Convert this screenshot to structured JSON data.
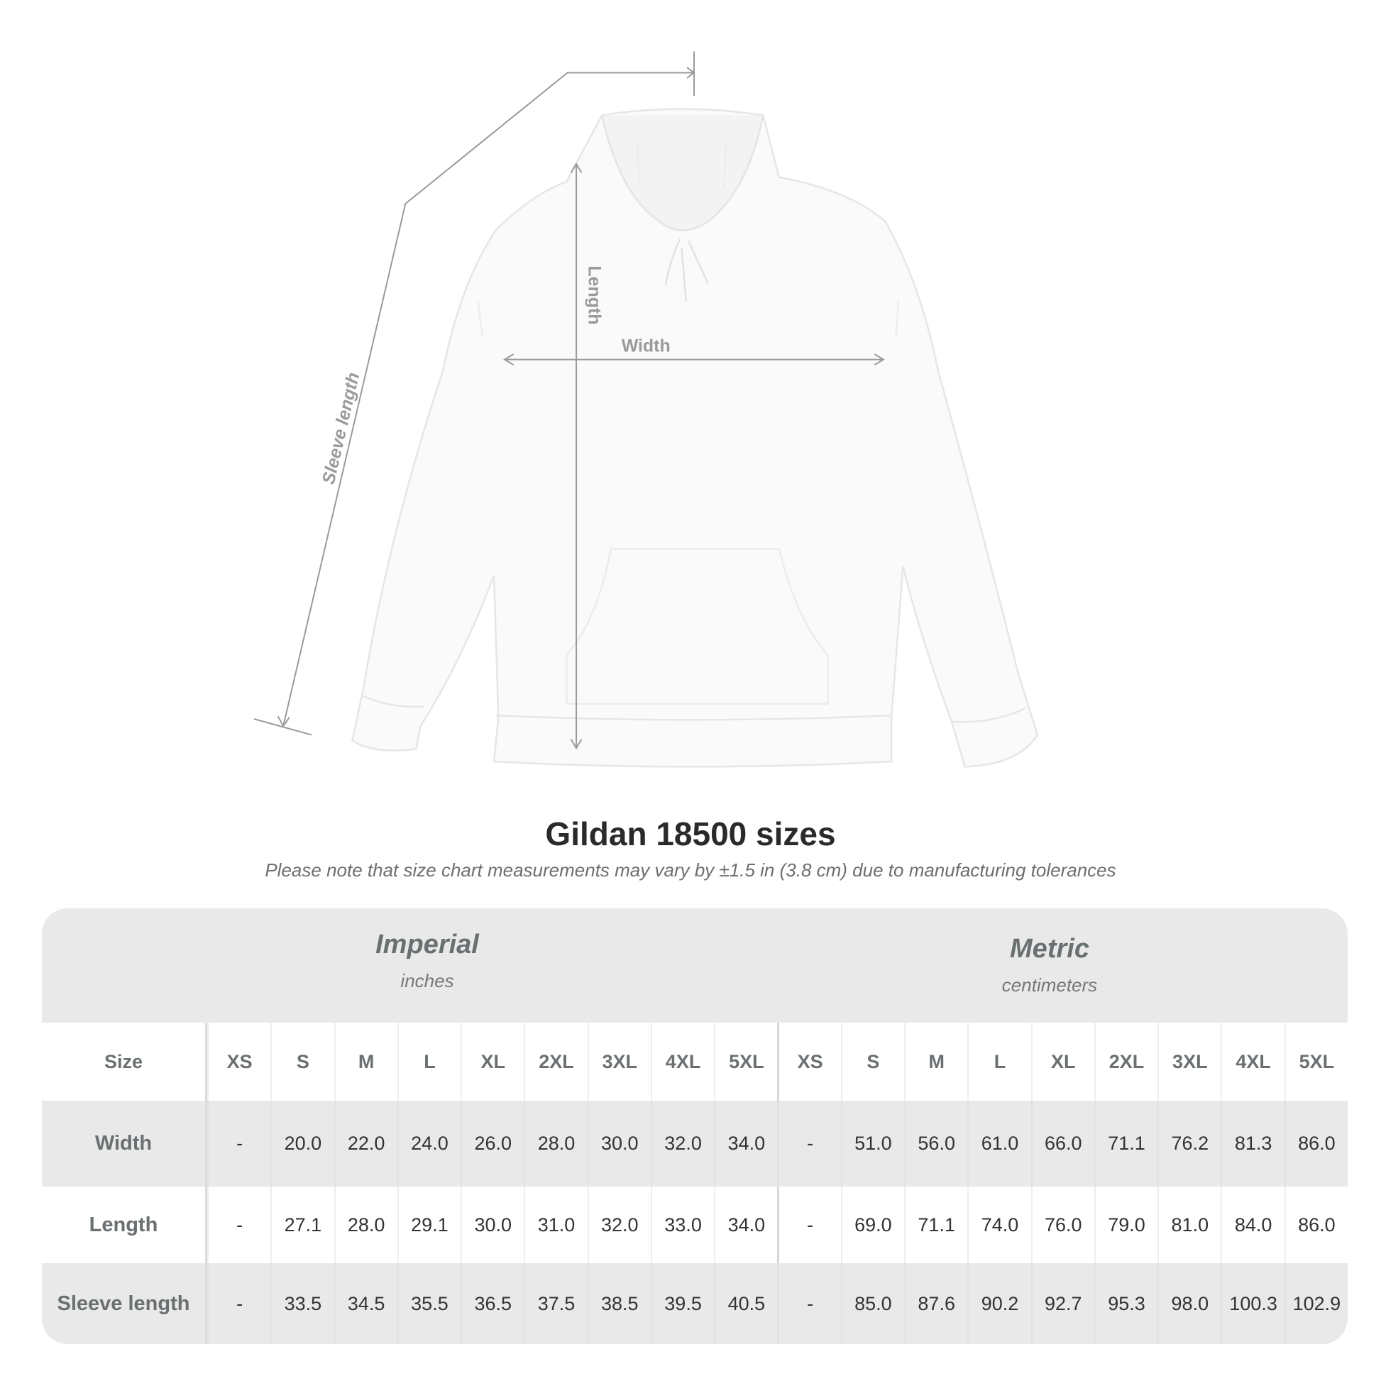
{
  "diagram": {
    "labels": {
      "sleeve": "Sleeve length",
      "length": "Length",
      "width": "Width"
    },
    "garment_color": "#fafafa"
  },
  "title": "Gildan 18500 sizes",
  "note": "Please note that size chart measurements may vary by ±1.5 in (3.8 cm) due to manufacturing tolerances",
  "table": {
    "imperial": {
      "label": "Imperial",
      "unit": "inches"
    },
    "metric": {
      "label": "Metric",
      "unit": "centimeters"
    },
    "size_label": "Size",
    "sizes": [
      "XS",
      "S",
      "M",
      "L",
      "XL",
      "2XL",
      "3XL",
      "4XL",
      "5XL"
    ],
    "rows": [
      {
        "label": "Width",
        "imperial": [
          "-",
          "20.0",
          "22.0",
          "24.0",
          "26.0",
          "28.0",
          "30.0",
          "32.0",
          "34.0"
        ],
        "metric": [
          "-",
          "51.0",
          "56.0",
          "61.0",
          "66.0",
          "71.1",
          "76.2",
          "81.3",
          "86.0"
        ]
      },
      {
        "label": "Length",
        "imperial": [
          "-",
          "27.1",
          "28.0",
          "29.1",
          "30.0",
          "31.0",
          "32.0",
          "33.0",
          "34.0"
        ],
        "metric": [
          "-",
          "69.0",
          "71.1",
          "74.0",
          "76.0",
          "79.0",
          "81.0",
          "84.0",
          "86.0"
        ]
      },
      {
        "label": "Sleeve length",
        "imperial": [
          "-",
          "33.5",
          "34.5",
          "35.5",
          "36.5",
          "37.5",
          "38.5",
          "39.5",
          "40.5"
        ],
        "metric": [
          "-",
          "85.0",
          "87.6",
          "90.2",
          "92.7",
          "95.3",
          "98.0",
          "100.3",
          "102.9"
        ]
      }
    ]
  }
}
